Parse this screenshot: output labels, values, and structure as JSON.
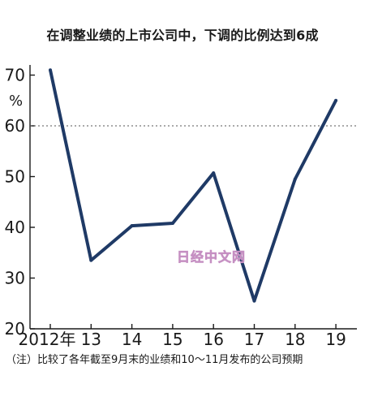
{
  "chart_data": {
    "type": "line",
    "title": "在调整业绩的上市公司中，下调的比例达到6成",
    "ylabel": "%",
    "categories": [
      "2012年",
      "13",
      "14",
      "15",
      "16",
      "17",
      "18",
      "19"
    ],
    "values": [
      71,
      33.5,
      40.3,
      40.8,
      50.7,
      25.5,
      49.5,
      65
    ],
    "ylim": [
      20,
      75
    ],
    "yticks": [
      20,
      30,
      40,
      50,
      60,
      70
    ],
    "reference_line": 60,
    "grid": false,
    "line_color": "#1f3a66",
    "note": "（注）比较了各年截至9月末的业绩和10～11月发布的公司预期",
    "watermark": "日经中文网"
  }
}
